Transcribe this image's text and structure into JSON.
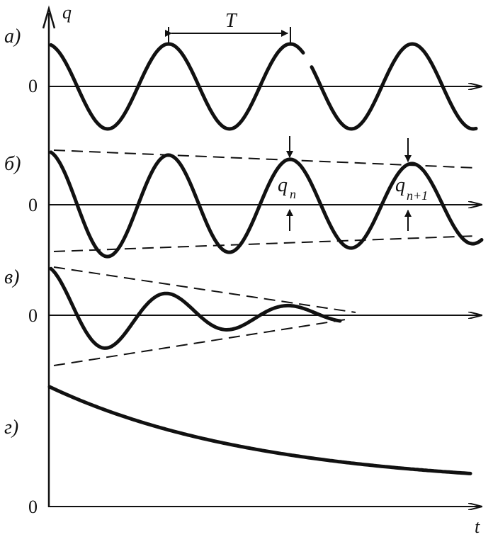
{
  "axes": {
    "y_label": "q",
    "x_label": "t",
    "zero": "0"
  },
  "panels": [
    {
      "label": "а)",
      "zero": "0",
      "description_type": "undamped"
    },
    {
      "label": "б)",
      "zero": "0",
      "description_type": "slightly-damped"
    },
    {
      "label": "в)",
      "zero": "0",
      "description_type": "strongly-damped"
    },
    {
      "label": "г)",
      "zero": "0",
      "description_type": "aperiodic"
    }
  ],
  "annotations": {
    "period": "T",
    "amp_n": {
      "base": "q",
      "sub": "n"
    },
    "amp_n1": {
      "base": "q",
      "sub": "n+1"
    }
  },
  "colors": {
    "ink": "#111111",
    "background": "#ffffff"
  }
}
